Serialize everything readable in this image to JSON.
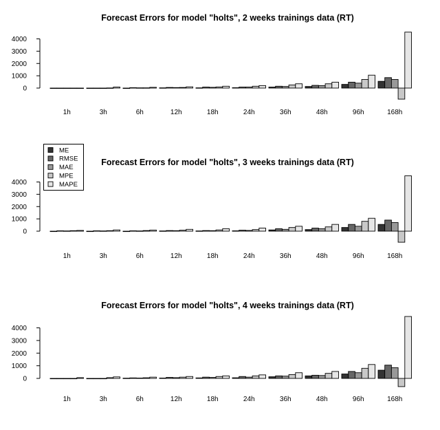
{
  "chart_data": [
    {
      "type": "bar",
      "title": "Forecast Errors for model \"holts\", 2 weeks trainings data (RT)",
      "xlabel": "",
      "ylabel": "",
      "categories": [
        "1h",
        "3h",
        "6h",
        "12h",
        "18h",
        "24h",
        "36h",
        "48h",
        "96h",
        "168h"
      ],
      "yticks": [
        0,
        1000,
        2000,
        3000,
        4000
      ],
      "ylim": [
        -900,
        4700
      ],
      "grid": false,
      "series": [
        {
          "name": "ME",
          "values": [
            0,
            0,
            0,
            20,
            20,
            30,
            80,
            130,
            300,
            550
          ]
        },
        {
          "name": "RMSE",
          "values": [
            0,
            0,
            30,
            50,
            80,
            80,
            150,
            220,
            480,
            850
          ]
        },
        {
          "name": "MAE",
          "values": [
            0,
            0,
            20,
            40,
            60,
            80,
            130,
            200,
            400,
            700
          ]
        },
        {
          "name": "MPE",
          "values": [
            0,
            10,
            20,
            50,
            90,
            150,
            250,
            350,
            700,
            -900
          ]
        },
        {
          "name": "MAPE",
          "values": [
            0,
            80,
            60,
            100,
            150,
            200,
            350,
            480,
            1050,
            4550
          ]
        }
      ]
    },
    {
      "type": "bar",
      "title": "Forecast Errors for model \"holts\", 3 weeks trainings data (RT)",
      "xlabel": "",
      "ylabel": "",
      "categories": [
        "1h",
        "3h",
        "6h",
        "12h",
        "18h",
        "24h",
        "36h",
        "48h",
        "96h",
        "168h"
      ],
      "yticks": [
        0,
        1000,
        2000,
        3000,
        4000
      ],
      "ylim": [
        -900,
        4700
      ],
      "grid": false,
      "legend": "top-left",
      "series": [
        {
          "name": "ME",
          "values": [
            0,
            0,
            0,
            20,
            20,
            30,
            100,
            130,
            300,
            550
          ]
        },
        {
          "name": "RMSE",
          "values": [
            30,
            30,
            30,
            50,
            50,
            80,
            200,
            250,
            550,
            900
          ]
        },
        {
          "name": "MAE",
          "values": [
            20,
            20,
            20,
            40,
            40,
            60,
            150,
            200,
            400,
            700
          ]
        },
        {
          "name": "MPE",
          "values": [
            40,
            40,
            50,
            80,
            100,
            130,
            300,
            350,
            800,
            -900
          ]
        },
        {
          "name": "MAPE",
          "values": [
            60,
            100,
            90,
            150,
            200,
            250,
            400,
            550,
            1050,
            4500
          ]
        }
      ]
    },
    {
      "type": "bar",
      "title": "Forecast Errors for model \"holts\", 4 weeks trainings data (RT)",
      "xlabel": "",
      "ylabel": "",
      "categories": [
        "1h",
        "3h",
        "6h",
        "12h",
        "18h",
        "24h",
        "36h",
        "48h",
        "96h",
        "168h"
      ],
      "yticks": [
        0,
        1000,
        2000,
        3000,
        4000
      ],
      "ylim": [
        -900,
        4900
      ],
      "grid": false,
      "series": [
        {
          "name": "ME",
          "values": [
            0,
            0,
            20,
            30,
            40,
            50,
            130,
            200,
            350,
            650
          ]
        },
        {
          "name": "RMSE",
          "values": [
            0,
            0,
            40,
            80,
            100,
            150,
            200,
            250,
            550,
            1050
          ]
        },
        {
          "name": "MAE",
          "values": [
            0,
            0,
            30,
            60,
            80,
            100,
            180,
            230,
            450,
            850
          ]
        },
        {
          "name": "MPE",
          "values": [
            0,
            60,
            50,
            100,
            150,
            200,
            300,
            400,
            800,
            -650
          ]
        },
        {
          "name": "MAPE",
          "values": [
            60,
            120,
            100,
            150,
            200,
            280,
            450,
            550,
            1100,
            4900
          ]
        }
      ]
    }
  ],
  "legend": {
    "items": [
      {
        "label": "ME",
        "color": "#333333"
      },
      {
        "label": "RMSE",
        "color": "#666666"
      },
      {
        "label": "MAE",
        "color": "#999999"
      },
      {
        "label": "MPE",
        "color": "#c8c8c8"
      },
      {
        "label": "MAPE",
        "color": "#e6e6e6"
      }
    ]
  }
}
